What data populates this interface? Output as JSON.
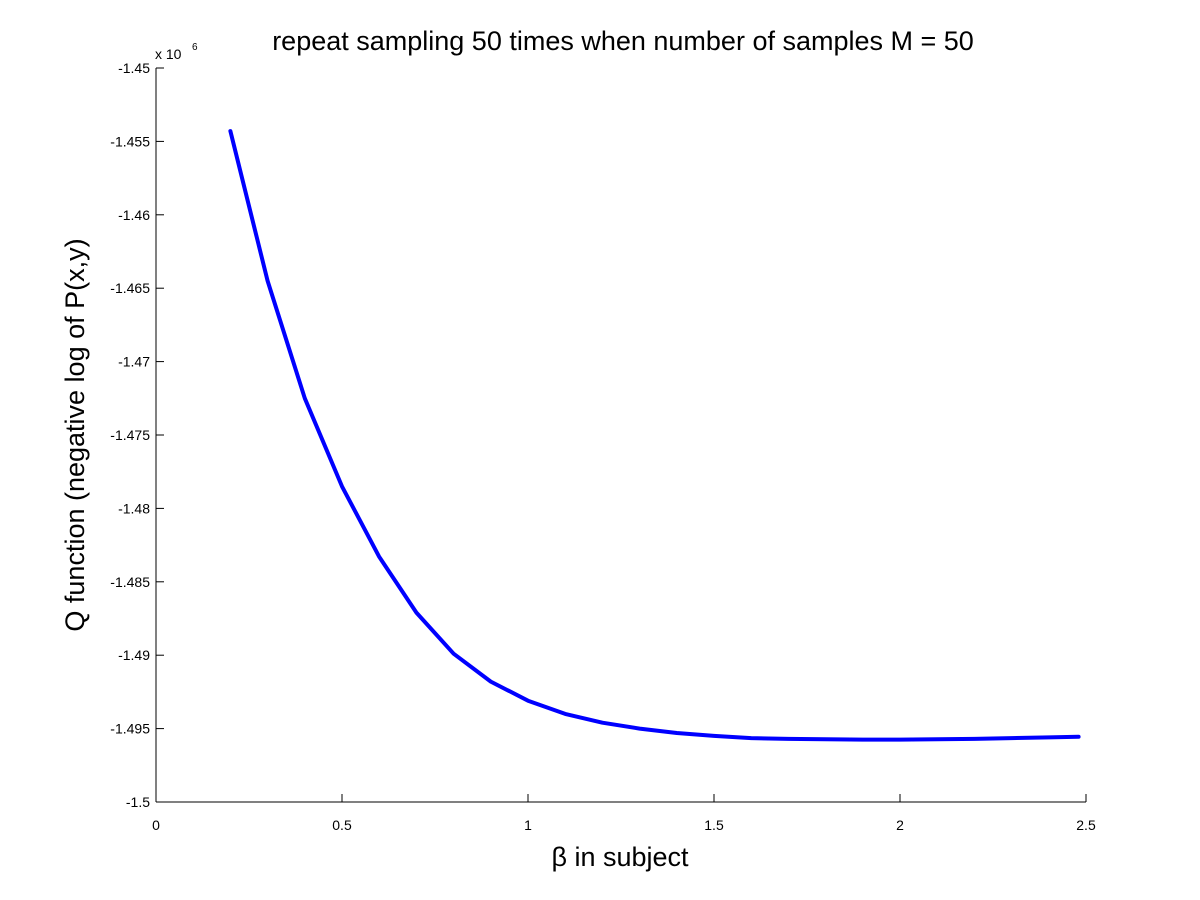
{
  "chart_data": {
    "type": "line",
    "title": "repeat sampling 50 times when number of samples M = 50",
    "xlabel": "β in subject",
    "ylabel": "Q function (negative log of P(x,y)",
    "y_exponent_label": "x 10",
    "y_exponent_power": "6",
    "xlim": [
      0,
      2.5
    ],
    "ylim": [
      -1.5,
      -1.45
    ],
    "x_ticks": [
      0,
      0.5,
      1,
      1.5,
      2,
      2.5
    ],
    "x_tick_labels": [
      "0",
      "0.5",
      "1",
      "1.5",
      "2",
      "2.5"
    ],
    "y_ticks": [
      -1.45,
      -1.455,
      -1.46,
      -1.465,
      -1.47,
      -1.475,
      -1.48,
      -1.485,
      -1.49,
      -1.495,
      -1.5
    ],
    "y_tick_labels": [
      "-1.45",
      "-1.455",
      "-1.46",
      "-1.465",
      "-1.47",
      "-1.475",
      "-1.48",
      "-1.485",
      "-1.49",
      "-1.495",
      "-1.5"
    ],
    "grid": false,
    "line_color": "#0000ff",
    "series": [
      {
        "x": [
          0.2,
          0.3,
          0.4,
          0.5,
          0.6,
          0.7,
          0.8,
          0.9,
          1.0,
          1.1,
          1.2,
          1.3,
          1.4,
          1.5,
          1.6,
          1.7,
          1.8,
          1.9,
          2.0,
          2.1,
          2.2,
          2.3,
          2.4,
          2.48
        ],
        "values": [
          -1.4543,
          -1.4645,
          -1.4725,
          -1.4785,
          -1.4833,
          -1.4871,
          -1.4899,
          -1.4918,
          -1.4931,
          -1.494,
          -1.4946,
          -1.495,
          -1.4953,
          -1.4955,
          -1.49565,
          -1.4957,
          -1.49573,
          -1.49575,
          -1.49575,
          -1.49573,
          -1.4957,
          -1.49565,
          -1.4956,
          -1.49555
        ]
      }
    ]
  }
}
